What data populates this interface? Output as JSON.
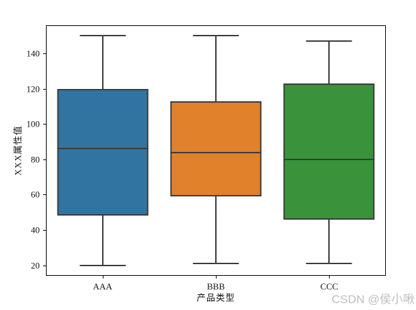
{
  "chart_data": {
    "type": "boxplot",
    "title": "",
    "xlabel": "产品类型",
    "ylabel": "XXX属性值",
    "categories": [
      "AAA",
      "BBB",
      "CCC"
    ],
    "series": [
      {
        "name": "AAA",
        "color": "#3274a1",
        "whisker_low": 20,
        "q1": 48,
        "median": 86,
        "q3": 120,
        "whisker_high": 150
      },
      {
        "name": "BBB",
        "color": "#e1812c",
        "whisker_low": 21,
        "q1": 59,
        "median": 84,
        "q3": 113,
        "whisker_high": 150
      },
      {
        "name": "CCC",
        "color": "#3a923a",
        "whisker_low": 21,
        "q1": 46,
        "median": 80,
        "q3": 123,
        "whisker_high": 147
      }
    ],
    "edge_color": "#3b3b3b",
    "yticks": [
      20,
      40,
      60,
      80,
      100,
      120,
      140
    ],
    "ylim": [
      14,
      156
    ],
    "grid": false,
    "legend": null
  },
  "watermark": {
    "text": "CSDN @侯小啾",
    "color": "#bfbfbf"
  }
}
